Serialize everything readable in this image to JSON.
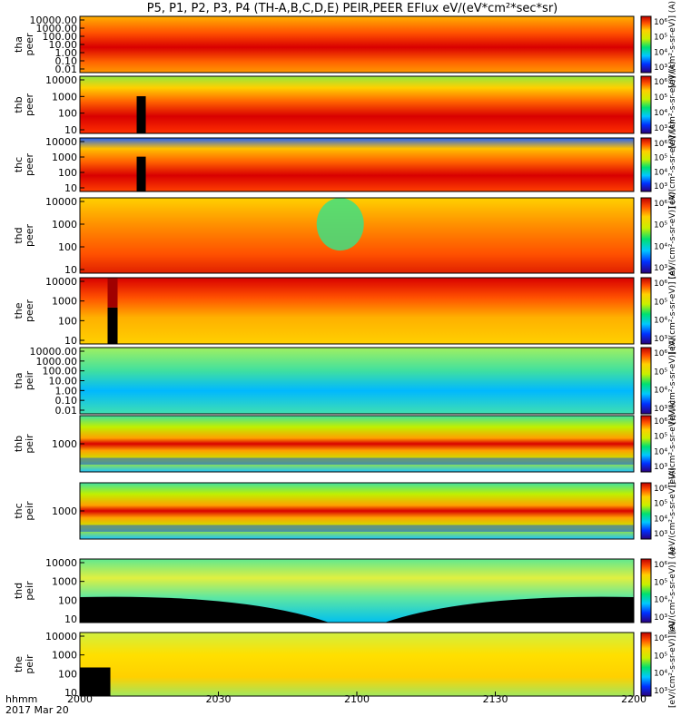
{
  "chart_data": {
    "type": "heatmap",
    "title": "P5, P1, P2, P3, P4 (TH-A,B,C,D,E) PEIR,PEER EFlux eV/(eV*cm²*sec*sr)",
    "x_label_line1": "hhmm",
    "x_label_line2": "2017 Mar 20",
    "x_ticks": [
      "2000",
      "2030",
      "2100",
      "2130",
      "2200"
    ],
    "x_range": [
      2000,
      2200
    ],
    "colorbar_label_peer": "[eV/(cm²-s-sr-eV)] (A)",
    "colorbar_label_peir": "[eV/(cm²-s-sr-eV)] (A)",
    "colorbar_ticks_peer": [
      "10³",
      "10⁴",
      "10⁵",
      "10⁶"
    ],
    "colorbar_ticks_peir": [
      "10³",
      "10⁴",
      "10⁵",
      "10⁶"
    ],
    "panels": [
      {
        "label": "tha peer",
        "y_ticks": [
          "10000.00",
          "1000.00",
          "100.00",
          "10.00",
          "1.00",
          "0.10",
          "0.01"
        ],
        "log": true
      },
      {
        "label": "thb peer",
        "y_ticks": [
          "10000",
          "1000",
          "100",
          "10"
        ],
        "log": true
      },
      {
        "label": "thc peer",
        "y_ticks": [
          "10000",
          "1000",
          "100",
          "10"
        ],
        "log": true
      },
      {
        "label": "thd peer",
        "y_ticks": [
          "10000",
          "1000",
          "100",
          "10"
        ],
        "log": true
      },
      {
        "label": "the peer",
        "y_ticks": [
          "10000",
          "1000",
          "100",
          "10"
        ],
        "log": true
      },
      {
        "label": "tha peir",
        "y_ticks": [
          "10000.00",
          "1000.00",
          "100.00",
          "10.00",
          "1.00",
          "0.10",
          "0.01"
        ],
        "log": true
      },
      {
        "label": "thb peir",
        "y_ticks": [
          "1000"
        ],
        "log": true
      },
      {
        "label": "thc peir",
        "y_ticks": [
          "1000"
        ],
        "log": true
      },
      {
        "label": "thd peir",
        "y_ticks": [
          "10000",
          "1000",
          "100",
          "10"
        ],
        "log": true
      },
      {
        "label": "the peir",
        "y_ticks": [
          "10000",
          "1000",
          "100",
          "10"
        ],
        "log": true
      }
    ]
  }
}
